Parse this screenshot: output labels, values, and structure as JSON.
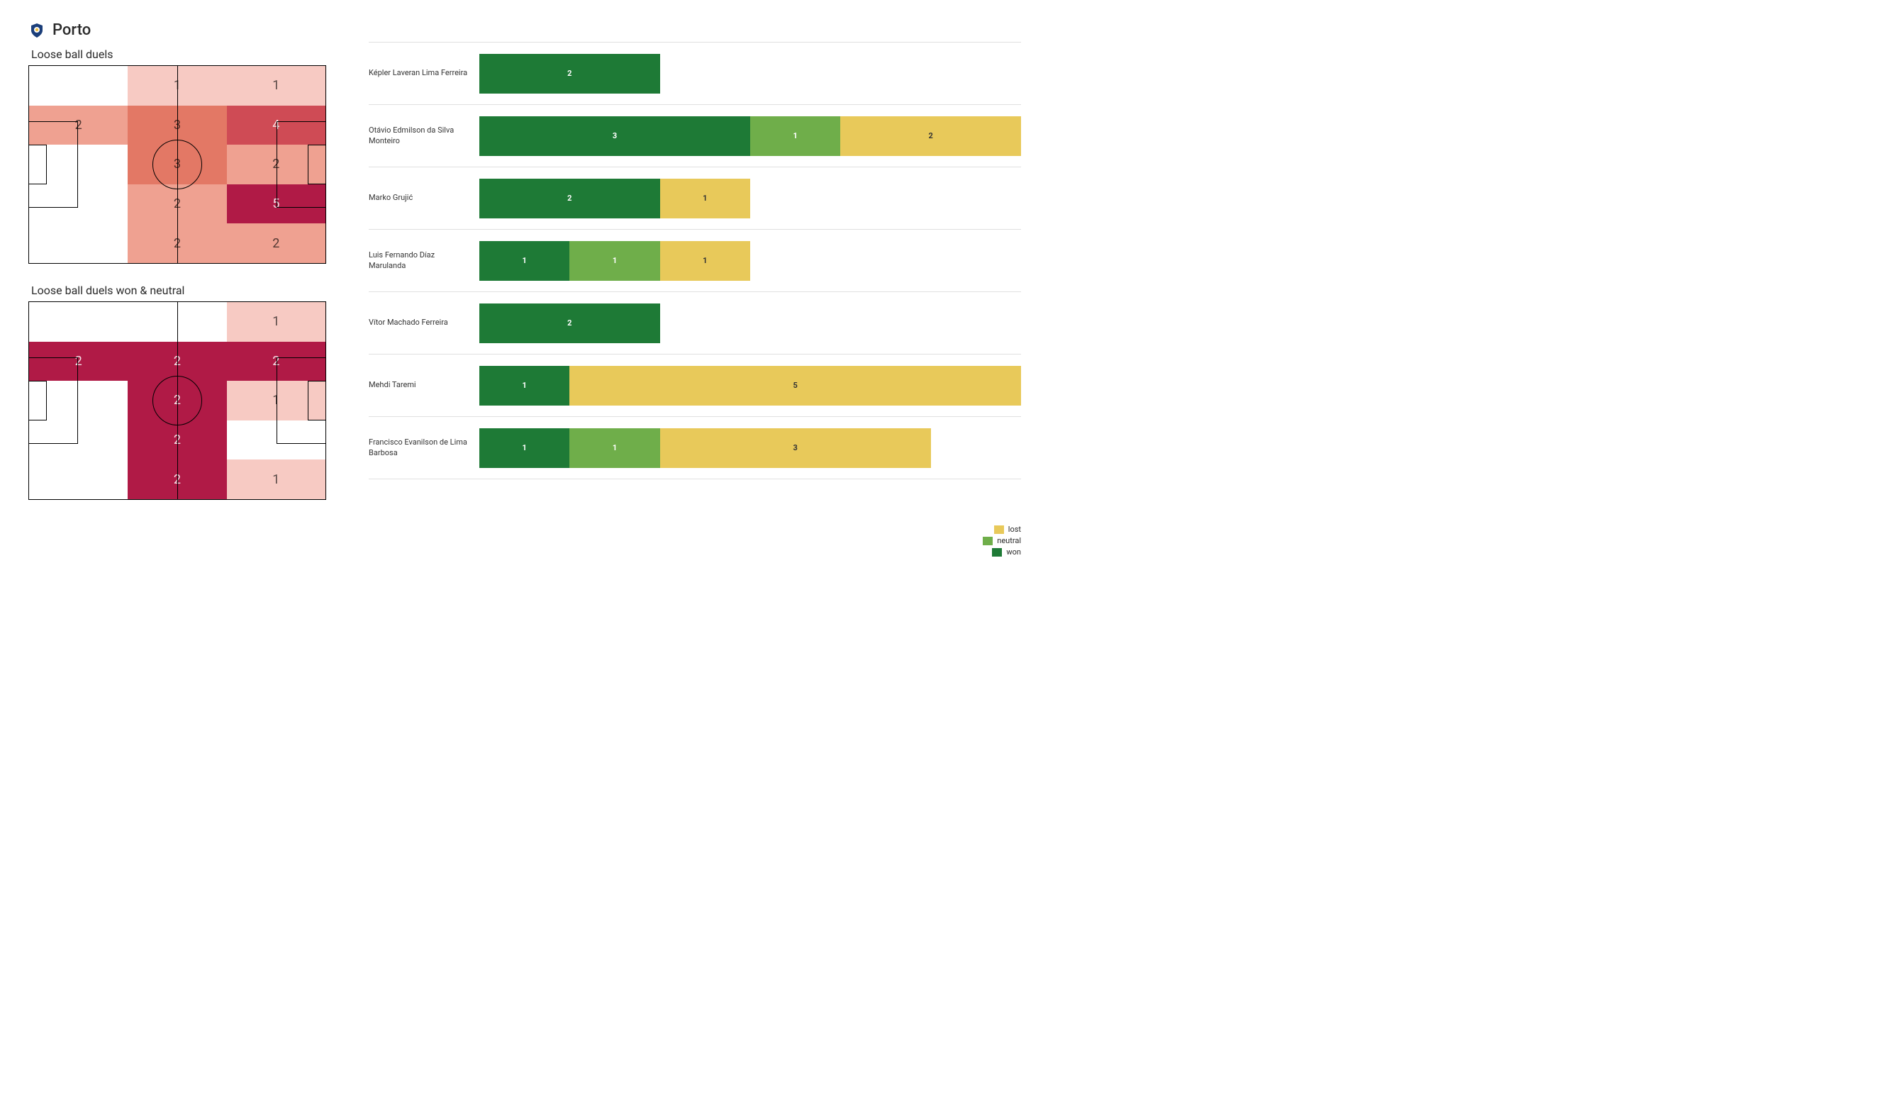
{
  "team": {
    "name": "Porto",
    "crest_bg": "#1c3f7a",
    "crest_accent": "#f0c040"
  },
  "colors": {
    "won": "#1e7a36",
    "neutral": "#6fae4a",
    "lost": "#e8c95a",
    "heat_scale": [
      "#ffffff",
      "#f7cac3",
      "#efa191",
      "#e37865",
      "#cf4b55",
      "#b01a46"
    ],
    "grid_line": "#e0e0e0"
  },
  "heatmap_all": {
    "title": "Loose ball duels",
    "rows": 5,
    "cols": 3,
    "cells": [
      [
        null,
        1,
        1
      ],
      [
        2,
        3,
        4
      ],
      [
        null,
        3,
        2
      ],
      [
        null,
        2,
        5
      ],
      [
        null,
        2,
        2
      ]
    ],
    "cell_colors": [
      [
        "#ffffff",
        "#f7cac3",
        "#f7cac3"
      ],
      [
        "#efa191",
        "#e37865",
        "#cf4b55"
      ],
      [
        "#ffffff",
        "#e37865",
        "#efa191"
      ],
      [
        "#ffffff",
        "#efa191",
        "#b01a46"
      ],
      [
        "#ffffff",
        "#efa191",
        "#efa191"
      ]
    ]
  },
  "heatmap_won": {
    "title": "Loose ball duels won & neutral",
    "rows": 5,
    "cols": 3,
    "cells": [
      [
        null,
        null,
        1
      ],
      [
        2,
        2,
        2
      ],
      [
        null,
        2,
        1
      ],
      [
        null,
        2,
        null
      ],
      [
        null,
        2,
        1
      ]
    ],
    "cell_colors": [
      [
        "#ffffff",
        "#ffffff",
        "#f7cac3"
      ],
      [
        "#b01a46",
        "#b01a46",
        "#b01a46"
      ],
      [
        "#ffffff",
        "#b01a46",
        "#f7cac3"
      ],
      [
        "#ffffff",
        "#b01a46",
        "#ffffff"
      ],
      [
        "#ffffff",
        "#b01a46",
        "#f7cac3"
      ]
    ]
  },
  "players": {
    "max_total": 6,
    "legend": {
      "lost": "lost",
      "neutral": "neutral",
      "won": "won"
    },
    "rows": [
      {
        "name": "Képler Laveran Lima Ferreira",
        "won": 2,
        "neutral": 0,
        "lost": 0
      },
      {
        "name": "Otávio Edmilson da Silva Monteiro",
        "won": 3,
        "neutral": 1,
        "lost": 2
      },
      {
        "name": "Marko Grujić",
        "won": 2,
        "neutral": 0,
        "lost": 1
      },
      {
        "name": "Luis Fernando Díaz Marulanda",
        "won": 1,
        "neutral": 1,
        "lost": 1
      },
      {
        "name": "Vítor Machado Ferreira",
        "won": 2,
        "neutral": 0,
        "lost": 0
      },
      {
        "name": "Mehdi Taremi",
        "won": 1,
        "neutral": 0,
        "lost": 5
      },
      {
        "name": "Francisco Evanilson de Lima Barbosa",
        "won": 1,
        "neutral": 1,
        "lost": 3
      }
    ]
  }
}
